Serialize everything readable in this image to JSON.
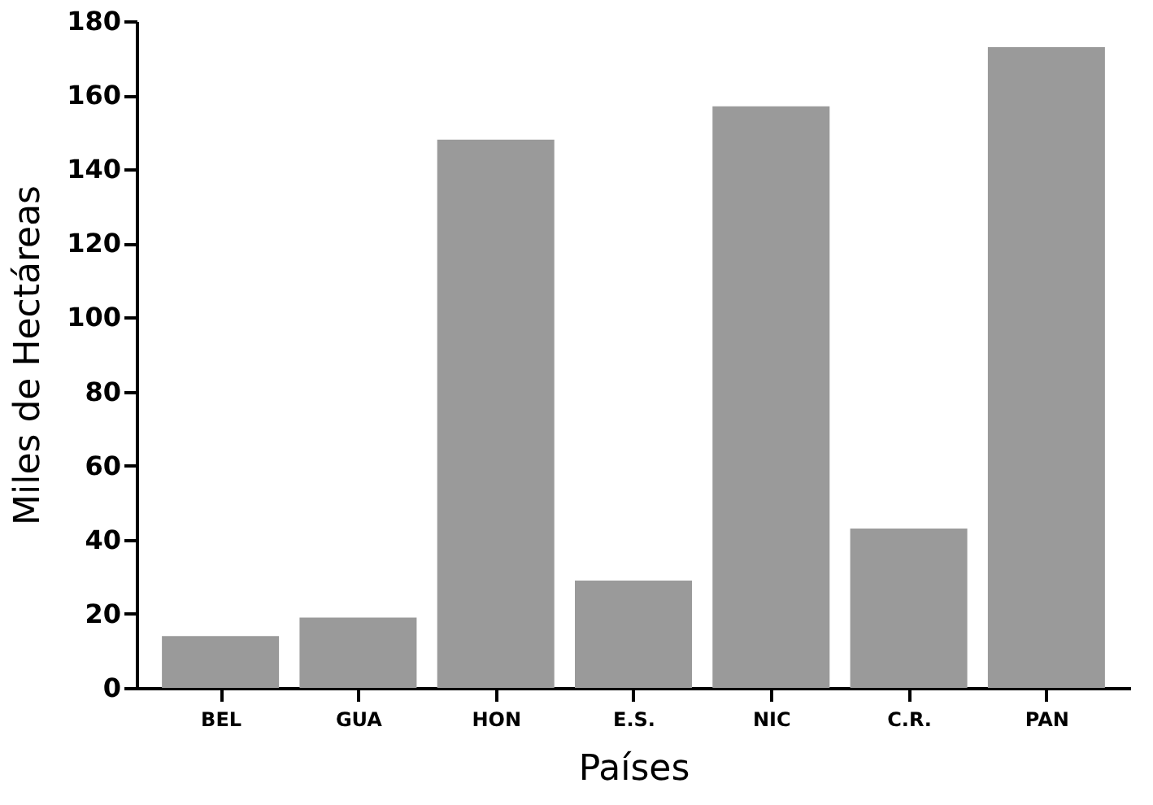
{
  "chart_data": {
    "type": "bar",
    "xlabel": "Países",
    "ylabel": "Miles de Hectáreas",
    "categories": [
      "BEL",
      "GUA",
      "HON",
      "E.S.",
      "NIC",
      "C.R.",
      "PAN"
    ],
    "values": [
      14,
      19,
      148,
      29,
      157,
      43,
      173
    ],
    "color": "#9a9a9a",
    "ylim": [
      0,
      180
    ],
    "yticks": [
      0,
      20,
      40,
      60,
      80,
      100,
      120,
      140,
      160,
      180
    ],
    "grid": false
  }
}
